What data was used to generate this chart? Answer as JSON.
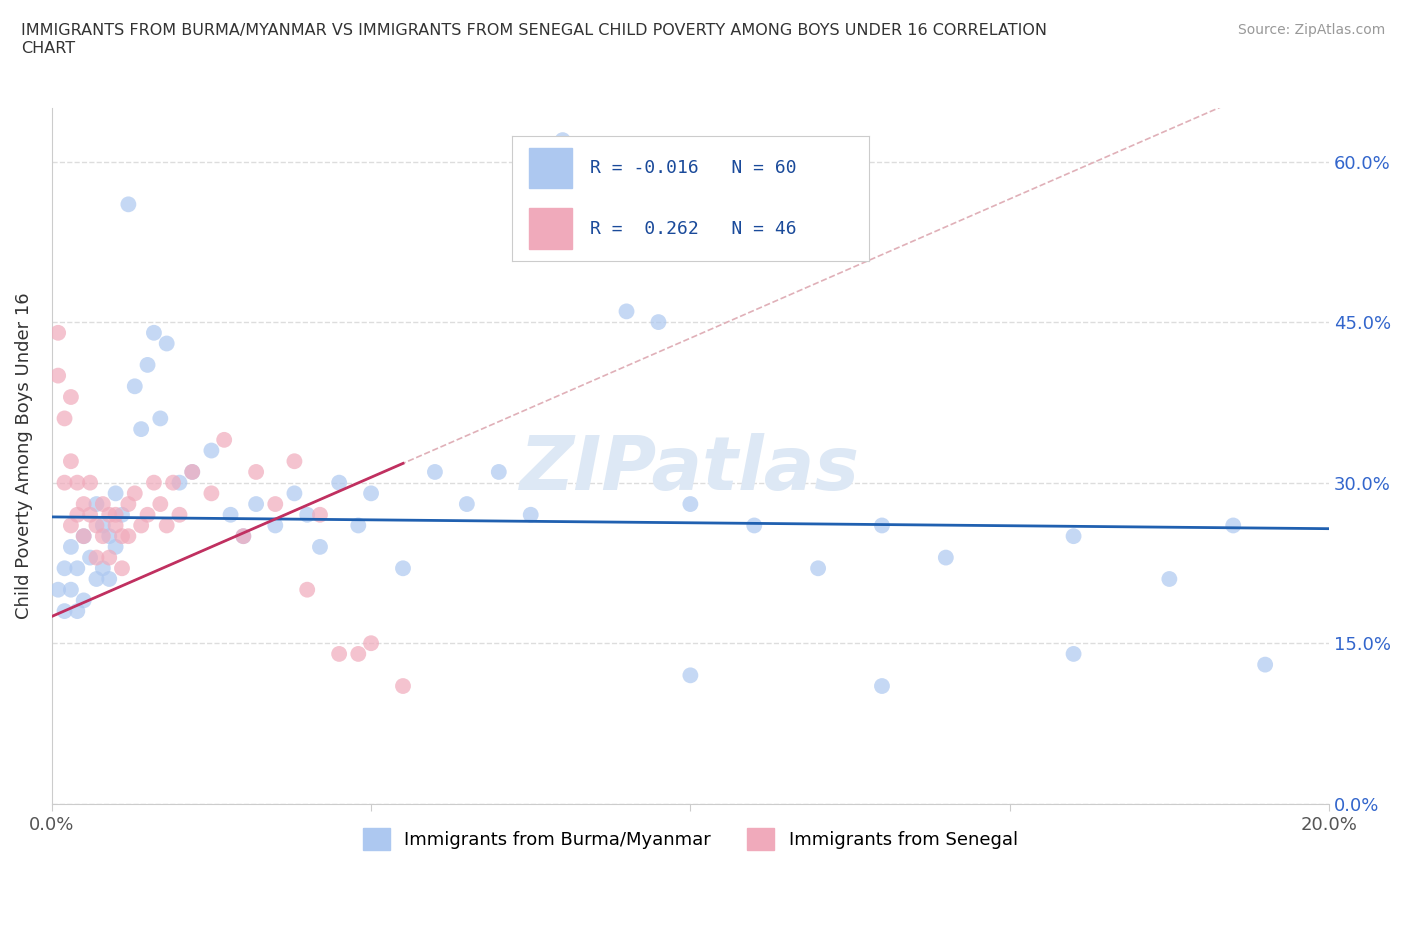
{
  "title": "IMMIGRANTS FROM BURMA/MYANMAR VS IMMIGRANTS FROM SENEGAL CHILD POVERTY AMONG BOYS UNDER 16 CORRELATION\nCHART",
  "source": "Source: ZipAtlas.com",
  "ylabel": "Child Poverty Among Boys Under 16",
  "xlim": [
    0.0,
    0.2
  ],
  "ylim": [
    0.0,
    0.65
  ],
  "yticks": [
    0.0,
    0.15,
    0.3,
    0.45,
    0.6
  ],
  "xticks": [
    0.0,
    0.05,
    0.1,
    0.15,
    0.2
  ],
  "R_burma": -0.016,
  "N_burma": 60,
  "R_senegal": 0.262,
  "N_senegal": 46,
  "color_burma": "#adc8f0",
  "color_senegal": "#f0aabb",
  "trendline_burma_color": "#2060b0",
  "trendline_senegal_color": "#c03060",
  "diagonal_color": "#e0b0b8",
  "watermark": "ZIPatlas",
  "burma_trendline_y0": 0.268,
  "burma_trendline_y1": 0.257,
  "senegal_trendline_x0": 0.0,
  "senegal_trendline_y0": 0.175,
  "senegal_trendline_x1": 0.05,
  "senegal_trendline_y1": 0.305,
  "burma_x": [
    0.001,
    0.002,
    0.002,
    0.003,
    0.003,
    0.004,
    0.004,
    0.005,
    0.005,
    0.006,
    0.007,
    0.007,
    0.008,
    0.008,
    0.009,
    0.009,
    0.01,
    0.01,
    0.011,
    0.012,
    0.013,
    0.014,
    0.015,
    0.016,
    0.017,
    0.018,
    0.02,
    0.022,
    0.025,
    0.028,
    0.03,
    0.032,
    0.035,
    0.038,
    0.04,
    0.042,
    0.045,
    0.048,
    0.05,
    0.055,
    0.06,
    0.065,
    0.07,
    0.075,
    0.08,
    0.085,
    0.09,
    0.095,
    0.1,
    0.11,
    0.12,
    0.13,
    0.14,
    0.16,
    0.175,
    0.185,
    0.1,
    0.13,
    0.16,
    0.19
  ],
  "burma_y": [
    0.2,
    0.22,
    0.18,
    0.24,
    0.2,
    0.22,
    0.18,
    0.25,
    0.19,
    0.23,
    0.21,
    0.28,
    0.26,
    0.22,
    0.25,
    0.21,
    0.29,
    0.24,
    0.27,
    0.56,
    0.39,
    0.35,
    0.41,
    0.44,
    0.36,
    0.43,
    0.3,
    0.31,
    0.33,
    0.27,
    0.25,
    0.28,
    0.26,
    0.29,
    0.27,
    0.24,
    0.3,
    0.26,
    0.29,
    0.22,
    0.31,
    0.28,
    0.31,
    0.27,
    0.62,
    0.55,
    0.46,
    0.45,
    0.28,
    0.26,
    0.22,
    0.26,
    0.23,
    0.25,
    0.21,
    0.26,
    0.12,
    0.11,
    0.14,
    0.13
  ],
  "senegal_x": [
    0.001,
    0.001,
    0.002,
    0.002,
    0.003,
    0.003,
    0.003,
    0.004,
    0.004,
    0.005,
    0.005,
    0.006,
    0.006,
    0.007,
    0.007,
    0.008,
    0.008,
    0.009,
    0.009,
    0.01,
    0.01,
    0.011,
    0.011,
    0.012,
    0.012,
    0.013,
    0.014,
    0.015,
    0.016,
    0.017,
    0.018,
    0.019,
    0.02,
    0.022,
    0.025,
    0.027,
    0.03,
    0.032,
    0.035,
    0.038,
    0.04,
    0.042,
    0.045,
    0.048,
    0.05,
    0.055
  ],
  "senegal_y": [
    0.4,
    0.44,
    0.36,
    0.3,
    0.26,
    0.32,
    0.38,
    0.27,
    0.3,
    0.28,
    0.25,
    0.3,
    0.27,
    0.26,
    0.23,
    0.28,
    0.25,
    0.27,
    0.23,
    0.27,
    0.26,
    0.25,
    0.22,
    0.28,
    0.25,
    0.29,
    0.26,
    0.27,
    0.3,
    0.28,
    0.26,
    0.3,
    0.27,
    0.31,
    0.29,
    0.34,
    0.25,
    0.31,
    0.28,
    0.32,
    0.2,
    0.27,
    0.14,
    0.14,
    0.15,
    0.11
  ]
}
